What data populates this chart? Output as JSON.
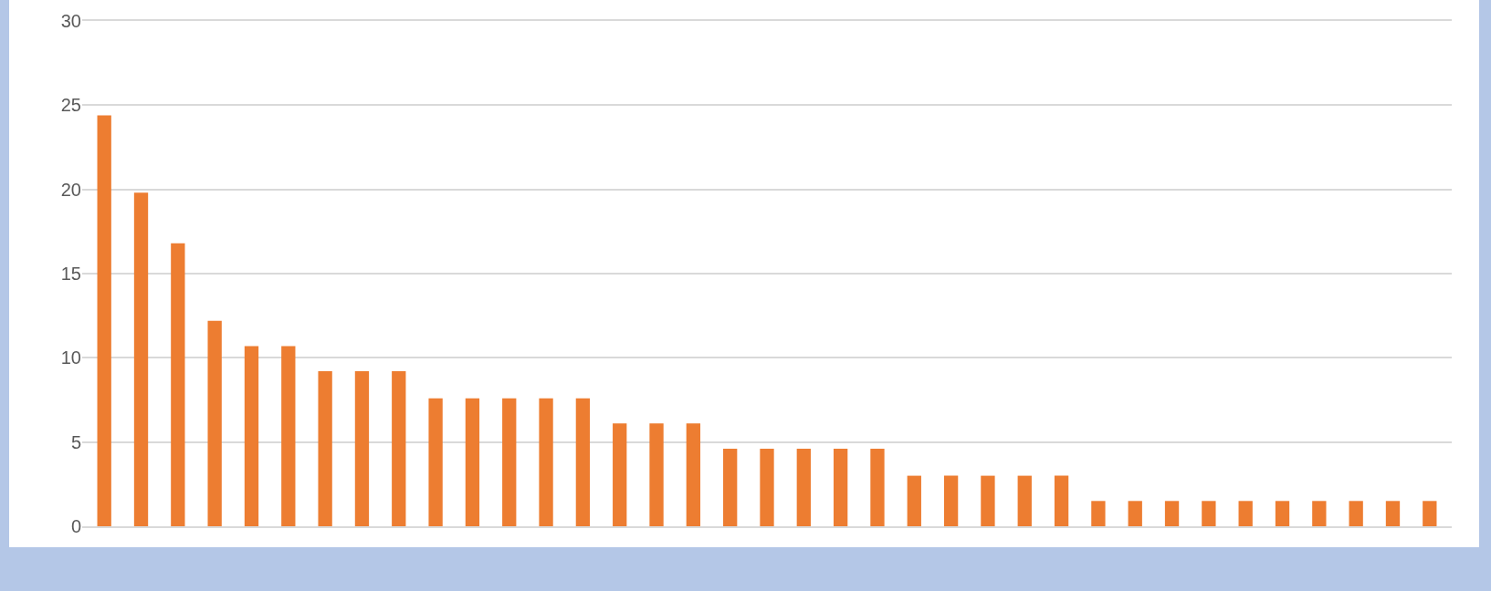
{
  "chart_data": {
    "type": "bar",
    "categories": [
      null,
      null,
      null,
      null,
      null,
      null,
      null,
      null,
      null,
      null,
      null,
      null,
      null,
      null,
      null,
      null,
      null,
      null,
      null,
      null,
      null,
      null,
      null,
      null,
      null,
      null,
      null,
      null,
      null,
      null,
      null,
      null,
      null,
      null,
      null,
      null,
      null
    ],
    "values": [
      24.4,
      19.8,
      16.8,
      12.2,
      10.7,
      10.7,
      9.2,
      9.2,
      9.2,
      7.6,
      7.6,
      7.6,
      7.6,
      7.6,
      6.1,
      6.1,
      6.1,
      4.6,
      4.6,
      4.6,
      4.6,
      4.6,
      3.0,
      3.0,
      3.0,
      3.0,
      3.0,
      1.5,
      1.5,
      1.5,
      1.5,
      1.5,
      1.5,
      1.5,
      1.5,
      1.5,
      1.5
    ],
    "color": "#ed7d31",
    "ylim": [
      0,
      30
    ],
    "yticks": [
      0,
      5,
      10,
      15,
      20,
      25,
      30
    ],
    "grid": "y"
  }
}
